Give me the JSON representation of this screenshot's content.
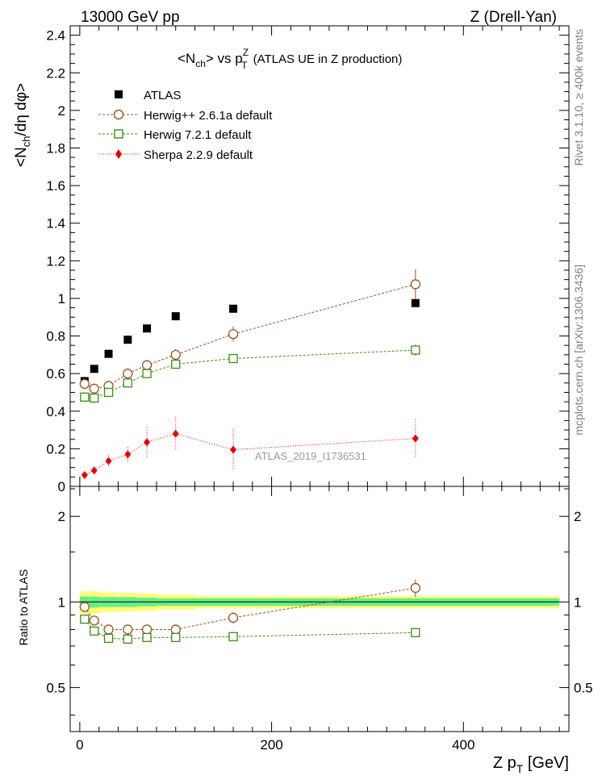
{
  "header": {
    "left": "13000 GeV pp",
    "right": "Z (Drell-Yan)"
  },
  "side_labels": {
    "rivet": "Rivet 3.1.10, ≥ 400k events",
    "mcplots": "mcplots.cern.ch [arXiv:1306.3436]"
  },
  "chart_data": [
    {
      "type": "scatter",
      "title": {
        "pre": "<N",
        "sub1": "ch",
        "mid": "> vs p",
        "sup": "Z",
        "sub2": "T",
        "post": " (ATLAS UE in Z production)"
      },
      "ylabel": {
        "a": "<N",
        "b": "ch",
        "c": "/dη dφ>"
      },
      "analysis_label": "ATLAS_2019_I1736531",
      "xlim": [
        -10,
        510
      ],
      "ylim": [
        0,
        2.45
      ],
      "yticks": [
        "0",
        "0.2",
        "0.4",
        "0.6",
        "0.8",
        "1",
        "1.2",
        "1.4",
        "1.6",
        "1.8",
        "2",
        "2.2",
        "2.4"
      ],
      "ytick_values": [
        0,
        0.2,
        0.4,
        0.6,
        0.8,
        1,
        1.2,
        1.4,
        1.6,
        1.8,
        2,
        2.2,
        2.4
      ],
      "legend_position": "top-left",
      "x": [
        5,
        15,
        30,
        50,
        70,
        100,
        160,
        350
      ],
      "series": [
        {
          "name": "ATLAS",
          "marker": "filled-square",
          "color": "#000000",
          "values": [
            0.56,
            0.625,
            0.705,
            0.78,
            0.84,
            0.905,
            0.945,
            0.975
          ],
          "errors": [
            0.005,
            0.005,
            0.005,
            0.005,
            0.005,
            0.005,
            0.005,
            0.005
          ]
        },
        {
          "name": "Herwig++ 2.6.1a default",
          "marker": "open-circle",
          "color": "#a0501e",
          "line": "dashed",
          "values": [
            0.545,
            0.52,
            0.535,
            0.6,
            0.645,
            0.7,
            0.81,
            1.075
          ],
          "errors": [
            0.01,
            0.01,
            0.015,
            0.015,
            0.02,
            0.03,
            0.04,
            0.08
          ]
        },
        {
          "name": "Herwig 7.2.1 default",
          "marker": "open-square",
          "color": "#3c8c14",
          "line": "dashed",
          "values": [
            0.475,
            0.47,
            0.5,
            0.55,
            0.6,
            0.65,
            0.68,
            0.725
          ],
          "errors": [
            0.01,
            0.01,
            0.01,
            0.015,
            0.015,
            0.02,
            0.02,
            0.03
          ]
        },
        {
          "name": "Sherpa 2.2.9 default",
          "marker": "filled-diamond",
          "color": "#e60000",
          "line": "dotted",
          "values": [
            0.06,
            0.085,
            0.135,
            0.17,
            0.235,
            0.28,
            0.195,
            0.255
          ],
          "errors": [
            0.015,
            0.02,
            0.03,
            0.04,
            0.08,
            0.09,
            0.11,
            0.1
          ]
        }
      ]
    },
    {
      "type": "scatter",
      "ylabel": "Ratio to ATLAS",
      "xlabel": {
        "pre": "Z p",
        "sub": "T",
        "post": " [GeV]"
      },
      "xlim": [
        -10,
        510
      ],
      "ylim": [
        0.35,
        2.55
      ],
      "y_scale": "log",
      "yticks": [
        "0.5",
        "1",
        "2"
      ],
      "ytick_values": [
        0.5,
        1,
        2
      ],
      "xticks": [
        "0",
        "200",
        "400"
      ],
      "xtick_values": [
        0,
        200,
        400
      ],
      "bands": {
        "edges": [
          0,
          10,
          20,
          40,
          60,
          80,
          120,
          200,
          500
        ],
        "stat_colors": {
          "inner": "#66ee88",
          "outer": "#ffff77"
        },
        "inner_half_width": [
          0.045,
          0.045,
          0.04,
          0.04,
          0.035,
          0.03,
          0.03,
          0.03
        ],
        "outer_half_width": [
          0.09,
          0.09,
          0.08,
          0.075,
          0.07,
          0.06,
          0.05,
          0.05
        ]
      },
      "x": [
        5,
        15,
        30,
        50,
        70,
        100,
        160,
        350
      ],
      "series": [
        {
          "name": "Herwig++ 2.6.1a default",
          "marker": "open-circle",
          "color": "#a0501e",
          "line": "dashed",
          "values": [
            0.96,
            0.86,
            0.8,
            0.8,
            0.8,
            0.8,
            0.88,
            1.12
          ],
          "errors": [
            0.01,
            0.015,
            0.02,
            0.02,
            0.02,
            0.03,
            0.04,
            0.08
          ]
        },
        {
          "name": "Herwig 7.2.1 default",
          "marker": "open-square",
          "color": "#3c8c14",
          "line": "dashed",
          "values": [
            0.87,
            0.79,
            0.745,
            0.74,
            0.75,
            0.75,
            0.755,
            0.78
          ],
          "errors": [
            0.01,
            0.01,
            0.01,
            0.015,
            0.015,
            0.015,
            0.02,
            0.03
          ]
        }
      ]
    }
  ]
}
